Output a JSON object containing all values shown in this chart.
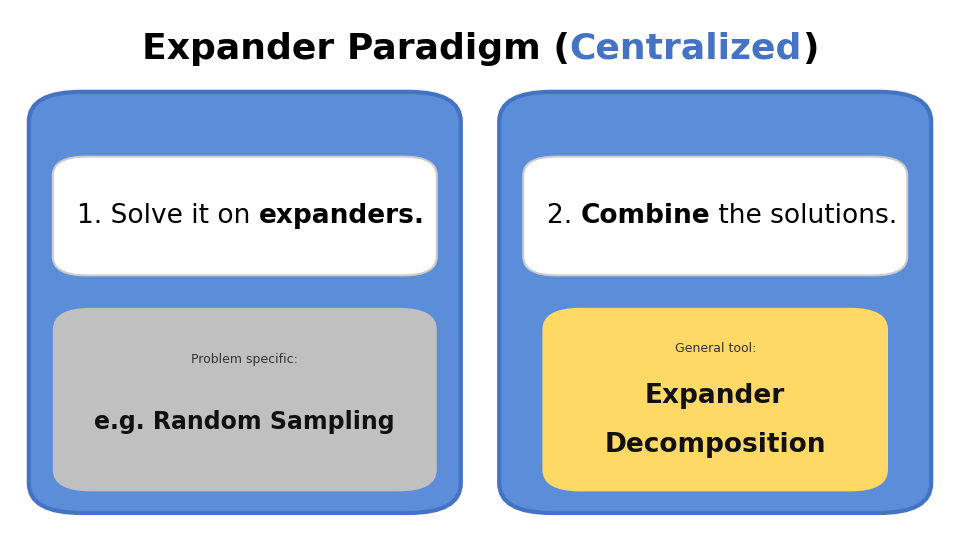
{
  "title_fontsize": 26,
  "bg_color": "#ffffff",
  "blue_box_color": "#5B8DD9",
  "blue_box_border": "#4472C4",
  "white_box_color": "#ffffff",
  "gray_box_color": "#c0c0c0",
  "yellow_box_color": "#FFD966",
  "left_box": {
    "header_text_normal": "1. Solve it on ",
    "header_text_bold": "expanders.",
    "header_fontsize": 19,
    "sub_label": "Problem specific:",
    "sub_label_fontsize": 9,
    "sub_text": "e.g. Random Sampling",
    "sub_text_fontsize": 17
  },
  "right_box": {
    "header_text_normal": "2. ",
    "header_text_bold": "Combine",
    "header_text_normal2": " the solutions.",
    "header_fontsize": 19,
    "sub_label": "General tool:",
    "sub_label_fontsize": 9,
    "sub_text_line1": "Expander",
    "sub_text_line2": "Decomposition",
    "sub_text_fontsize": 19
  }
}
